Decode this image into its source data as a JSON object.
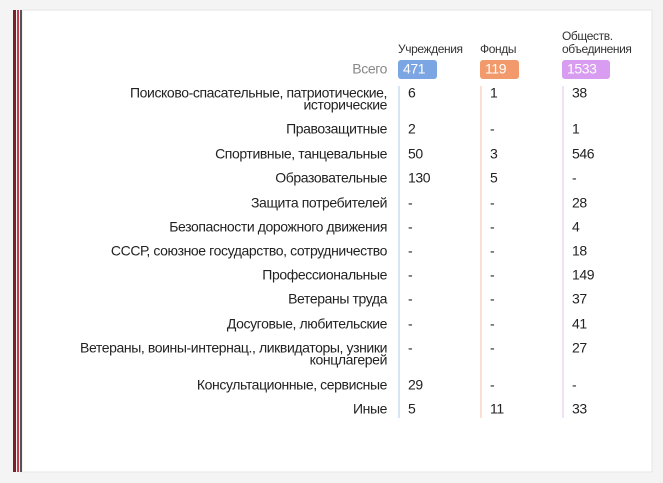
{
  "table": {
    "total_label": "Всего",
    "columns": [
      {
        "name": [
          "Учреждения"
        ],
        "total": 471,
        "color": "#7ba6e3"
      },
      {
        "name": [
          "Фонды"
        ],
        "total": 119,
        "color": "#f29a6b"
      },
      {
        "name": [
          "Обществ.",
          "объединения"
        ],
        "total": 1533,
        "color": "#d89cf0"
      }
    ],
    "rows": [
      {
        "label": [
          "Поисково-спасательные, патриотические,",
          "исторические"
        ],
        "values": [
          6,
          1,
          38
        ]
      },
      {
        "label": [
          "Правозащитные"
        ],
        "values": [
          2,
          "-",
          1
        ]
      },
      {
        "label": [
          "Спортивные, танцевальные"
        ],
        "values": [
          50,
          3,
          546
        ]
      },
      {
        "label": [
          "Образовательные"
        ],
        "values": [
          130,
          5,
          "-"
        ]
      },
      {
        "label": [
          "Защита потребителей"
        ],
        "values": [
          "-",
          "-",
          28
        ]
      },
      {
        "label": [
          "Безопасности дорожного движения"
        ],
        "values": [
          "-",
          "-",
          4
        ]
      },
      {
        "label": [
          "СССР, союзное государство, сотрудничество"
        ],
        "values": [
          "-",
          "-",
          18
        ]
      },
      {
        "label": [
          "Профессиональные"
        ],
        "values": [
          "-",
          "-",
          149
        ]
      },
      {
        "label": [
          "Ветераны труда"
        ],
        "values": [
          "-",
          "-",
          37
        ]
      },
      {
        "label": [
          "Досуговые, любительские"
        ],
        "values": [
          "-",
          "-",
          41
        ]
      },
      {
        "label": [
          "Ветераны, воины-интернац., ликвидаторы, узники",
          "концлагерей"
        ],
        "values": [
          "-",
          "-",
          27
        ]
      },
      {
        "label": [
          "Консультационные, сервисные"
        ],
        "values": [
          29,
          "-",
          "-"
        ]
      },
      {
        "label": [
          "Иные"
        ],
        "values": [
          5,
          11,
          33
        ]
      }
    ]
  }
}
